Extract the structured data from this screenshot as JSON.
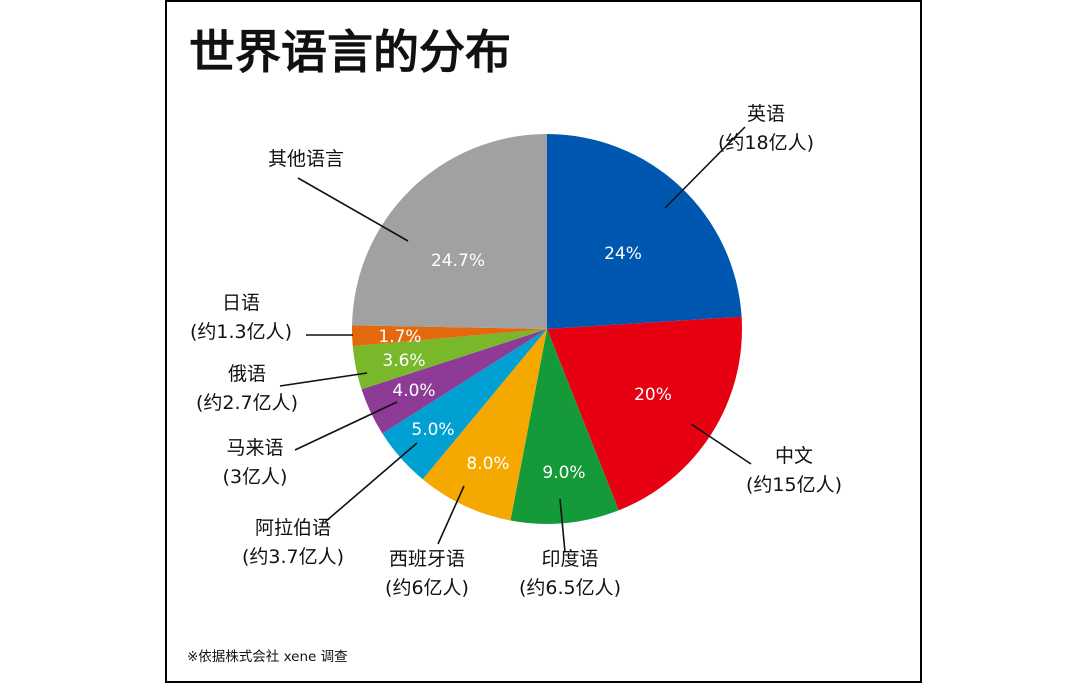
{
  "chart_data": {
    "type": "pie",
    "title": "世界语言的分布",
    "slices": [
      {
        "name": "英语",
        "amount": "(约18亿人)",
        "value": 24,
        "label": "24%",
        "color": "#0057b0"
      },
      {
        "name": "中文",
        "amount": "(约15亿人)",
        "value": 20,
        "label": "20%",
        "color": "#e60012"
      },
      {
        "name": "印度语",
        "amount": "(约6.5亿人)",
        "value": 9.0,
        "label": "9.0%",
        "color": "#159a3a"
      },
      {
        "name": "西班牙语",
        "amount": "(约6亿人)",
        "value": 8.0,
        "label": "8.0%",
        "color": "#f5a800"
      },
      {
        "name": "阿拉伯语",
        "amount": "(约3.7亿人)",
        "value": 5.0,
        "label": "5.0%",
        "color": "#00a0d2"
      },
      {
        "name": "马来语",
        "amount": "(3亿人)",
        "value": 4.0,
        "label": "4.0%",
        "color": "#8e3a97"
      },
      {
        "name": "俄语",
        "amount": "(约2.7亿人)",
        "value": 3.6,
        "label": "3.6%",
        "color": "#78b82a"
      },
      {
        "name": "日语",
        "amount": "(约1.3亿人)",
        "value": 1.7,
        "label": "1.7%",
        "color": "#e4690c"
      },
      {
        "name": "其他语言",
        "amount": "",
        "value": 24.7,
        "label": "24.7%",
        "color": "#a1a1a1"
      }
    ],
    "start_angle_deg": 0,
    "direction": "clockwise"
  },
  "footnote": "※依据株式会社 xene 调查"
}
